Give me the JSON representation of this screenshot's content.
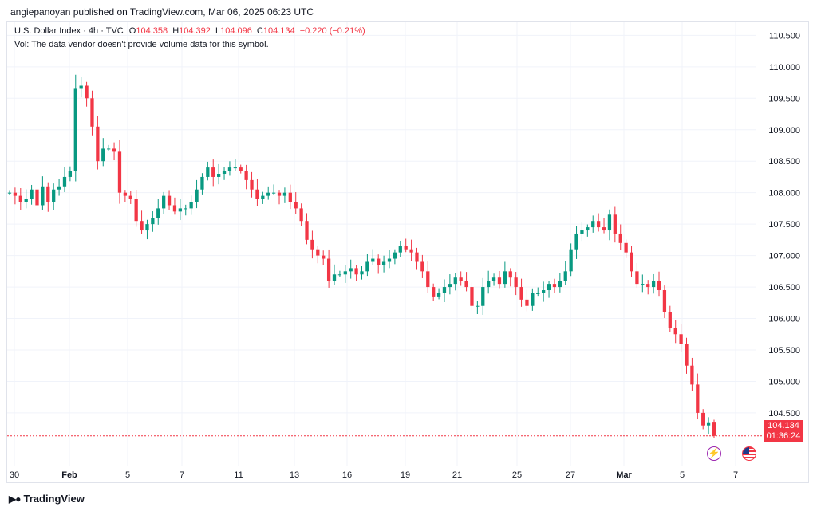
{
  "header": {
    "published": "angiepanoyan published on TradingView.com, Mar 06, 2025 06:23 UTC"
  },
  "legend": {
    "symbol": "U.S. Dollar Index · 4h · TVC",
    "o_label": "O",
    "o": "104.358",
    "h_label": "H",
    "h": "104.392",
    "l_label": "L",
    "l": "104.096",
    "c_label": "C",
    "c": "104.134",
    "change": "−0.220 (−0.21%)",
    "vol": "Vol: The data vendor doesn't provide volume data for this symbol."
  },
  "last_price": {
    "price": "104.134",
    "countdown": "01:36:24",
    "value": 104.134
  },
  "brand": {
    "name": "TradingView",
    "logo": "TV-logo"
  },
  "events": {
    "bolt": "bolt-icon",
    "flag": "us-flag-icon"
  },
  "colors": {
    "up": "#089981",
    "down": "#f23645",
    "grid": "#f0f3fa",
    "axis_text": "#131722"
  },
  "chart_data": {
    "type": "candlestick",
    "title": "U.S. Dollar Index · 4h · TVC",
    "ylim": [
      103.65,
      110.72
    ],
    "yticks": [
      "110.500",
      "110.000",
      "109.500",
      "109.000",
      "108.500",
      "108.000",
      "107.500",
      "107.000",
      "106.500",
      "106.000",
      "105.500",
      "105.000",
      "104.500"
    ],
    "xticks": [
      "30",
      "Feb",
      "5",
      "7",
      "11",
      "13",
      "16",
      "19",
      "21",
      "25",
      "27",
      "Mar",
      "5",
      "7"
    ],
    "xtick_bold": [
      "Feb",
      "Mar"
    ],
    "closes": [
      108.0,
      107.95,
      107.85,
      107.9,
      108.05,
      107.8,
      108.1,
      107.85,
      108.05,
      108.1,
      108.25,
      108.35,
      109.65,
      109.7,
      109.5,
      109.05,
      108.5,
      108.7,
      108.7,
      108.65,
      108.0,
      107.95,
      107.9,
      107.55,
      107.4,
      107.5,
      107.6,
      107.75,
      107.95,
      107.8,
      107.7,
      107.75,
      107.75,
      107.85,
      108.05,
      108.25,
      108.4,
      108.25,
      108.3,
      108.35,
      108.4,
      108.4,
      108.35,
      108.2,
      108.05,
      107.9,
      107.95,
      108.0,
      108.0,
      107.95,
      108.0,
      107.85,
      107.75,
      107.55,
      107.25,
      107.1,
      107.0,
      106.95,
      106.6,
      106.7,
      106.7,
      106.75,
      106.8,
      106.7,
      106.75,
      106.9,
      106.95,
      106.85,
      106.9,
      106.95,
      107.05,
      107.15,
      107.1,
      107.05,
      106.9,
      106.75,
      106.5,
      106.35,
      106.4,
      106.5,
      106.55,
      106.65,
      106.6,
      106.5,
      106.2,
      106.2,
      106.5,
      106.6,
      106.65,
      106.55,
      106.75,
      106.65,
      106.5,
      106.3,
      106.2,
      106.4,
      106.4,
      106.45,
      106.55,
      106.5,
      106.6,
      106.75,
      107.1,
      107.35,
      107.4,
      107.45,
      107.55,
      107.45,
      107.4,
      107.65,
      107.35,
      107.2,
      107.05,
      106.75,
      106.55,
      106.55,
      106.5,
      106.6,
      106.45,
      106.1,
      105.85,
      105.75,
      105.6,
      105.25,
      104.95,
      104.5,
      104.3,
      104.35,
      104.134
    ],
    "first_open": 108.0,
    "last_ohlc": {
      "o": 104.358,
      "h": 104.392,
      "l": 104.096,
      "c": 104.134
    }
  }
}
